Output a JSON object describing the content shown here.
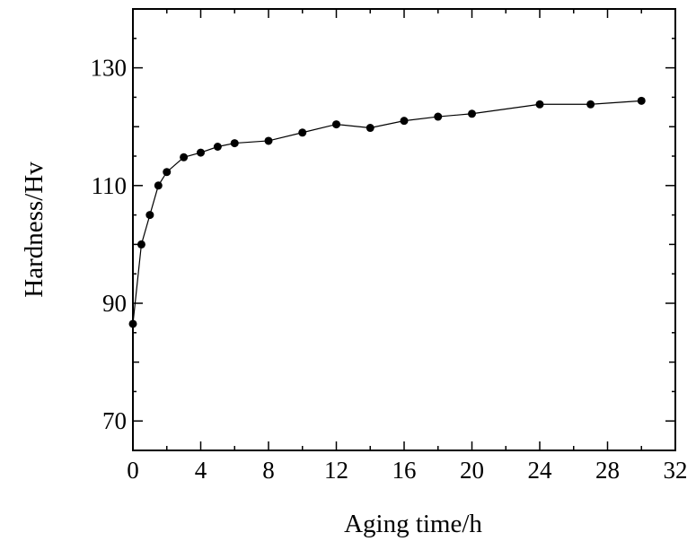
{
  "chart_data": {
    "type": "line",
    "xlabel": "Aging time/h",
    "ylabel": "Hardness/Hv",
    "xlim": [
      0,
      32
    ],
    "ylim": [
      65,
      140
    ],
    "xticks": [
      0,
      4,
      8,
      12,
      16,
      20,
      24,
      28,
      32
    ],
    "yticks": [
      70,
      90,
      110,
      130
    ],
    "grid": false,
    "legend": "none",
    "marker": "filled-circle",
    "line_color": "#000000",
    "series": [
      {
        "x": [
          0,
          0.5,
          1,
          1.5,
          2,
          3,
          4,
          5,
          6,
          8,
          10,
          12,
          14,
          16,
          18,
          20,
          24,
          27,
          30
        ],
        "values": [
          86.5,
          100,
          105,
          110,
          112.3,
          114.8,
          115.6,
          116.6,
          117.2,
          117.6,
          119,
          120.4,
          119.8,
          121,
          121.7,
          122.2,
          123.8,
          123.8,
          124.4
        ]
      }
    ]
  }
}
